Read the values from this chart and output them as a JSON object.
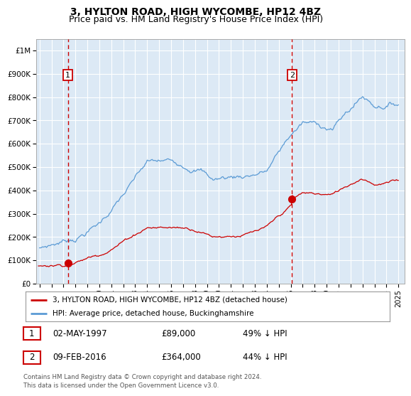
{
  "title": "3, HYLTON ROAD, HIGH WYCOMBE, HP12 4BZ",
  "subtitle": "Price paid vs. HM Land Registry's House Price Index (HPI)",
  "title_fontsize": 10,
  "subtitle_fontsize": 9,
  "background_color": "#ffffff",
  "plot_bg_color": "#dce9f5",
  "grid_color": "#ffffff",
  "hpi_color": "#5b9bd5",
  "price_color": "#cc0000",
  "dashed_color": "#cc0000",
  "ylim": [
    0,
    1050000
  ],
  "yticks": [
    0,
    100000,
    200000,
    300000,
    400000,
    500000,
    600000,
    700000,
    800000,
    900000,
    1000000
  ],
  "ytick_labels": [
    "£0",
    "£100K",
    "£200K",
    "£300K",
    "£400K",
    "£500K",
    "£600K",
    "£700K",
    "£800K",
    "£900K",
    "£1M"
  ],
  "sale1": {
    "date_num": 1997.37,
    "price": 89000,
    "label": "1",
    "date_str": "02-MAY-1997",
    "price_str": "£89,000",
    "pct": "49% ↓ HPI"
  },
  "sale2": {
    "date_num": 2016.1,
    "price": 364000,
    "label": "2",
    "date_str": "09-FEB-2016",
    "price_str": "£364,000",
    "pct": "44% ↓ HPI"
  },
  "legend_line1": "3, HYLTON ROAD, HIGH WYCOMBE, HP12 4BZ (detached house)",
  "legend_line2": "HPI: Average price, detached house, Buckinghamshire",
  "footnote": "Contains HM Land Registry data © Crown copyright and database right 2024.\nThis data is licensed under the Open Government Licence v3.0.",
  "xlim": [
    1994.7,
    2025.5
  ],
  "xticks": [
    1995,
    1996,
    1997,
    1998,
    1999,
    2000,
    2001,
    2002,
    2003,
    2004,
    2005,
    2006,
    2007,
    2008,
    2009,
    2010,
    2011,
    2012,
    2013,
    2014,
    2015,
    2016,
    2017,
    2018,
    2019,
    2020,
    2021,
    2022,
    2023,
    2024,
    2025
  ]
}
